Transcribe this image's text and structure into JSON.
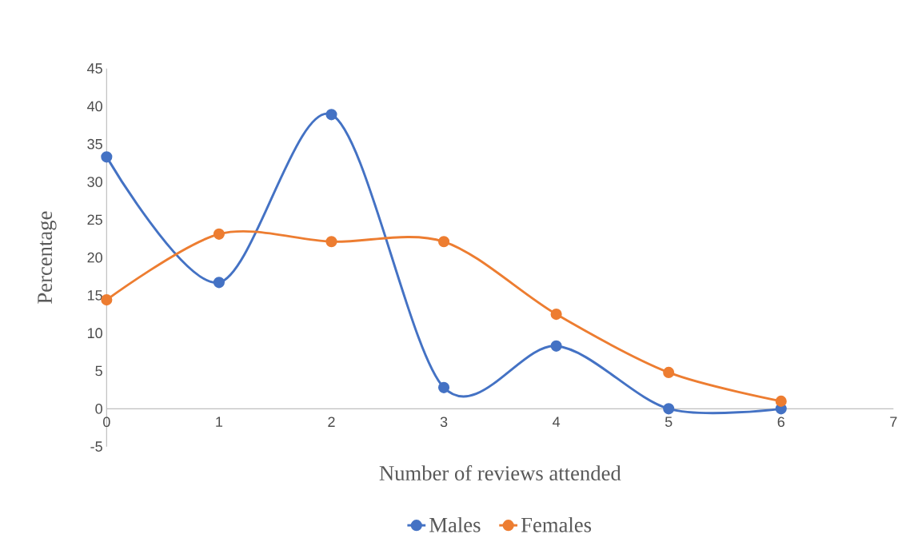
{
  "chart_data": {
    "type": "line",
    "xlabel": "Number of reviews attended",
    "ylabel": "Percentage",
    "x": [
      0,
      1,
      2,
      3,
      4,
      5,
      6
    ],
    "series": [
      {
        "name": "Males",
        "color": "#4472c4",
        "values": [
          33.3,
          16.7,
          38.9,
          2.8,
          8.3,
          0,
          0
        ]
      },
      {
        "name": "Females",
        "color": "#ed7d31",
        "values": [
          14.4,
          23.1,
          22.1,
          22.1,
          12.5,
          4.8,
          1.0
        ]
      }
    ],
    "xlim": [
      0,
      7
    ],
    "xticks": [
      0,
      1,
      2,
      3,
      4,
      5,
      6,
      7
    ],
    "ylim": [
      -5,
      45
    ],
    "yticks": [
      -5,
      0,
      5,
      10,
      15,
      20,
      25,
      30,
      35,
      40,
      45
    ],
    "marker": "circle",
    "line_style": "solid",
    "legend": "bottom",
    "grid": false
  }
}
